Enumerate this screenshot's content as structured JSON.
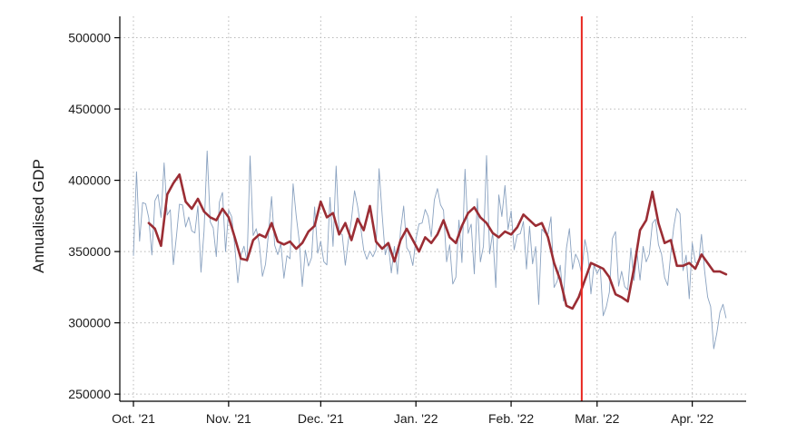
{
  "chart_data": {
    "type": "line",
    "title": "",
    "xlabel": "",
    "ylabel": "Annualised GDP",
    "ylim": [
      245000,
      515000
    ],
    "yticks": [
      250000,
      300000,
      350000,
      400000,
      450000,
      500000
    ],
    "ytick_labels": [
      "250000",
      "300000",
      "350000",
      "400000",
      "450000",
      "500000"
    ],
    "x_start": "2021-10-01",
    "x_end": "2022-04-15",
    "xticks": [
      "2021-10-01",
      "2021-11-01",
      "2021-12-01",
      "2022-01-01",
      "2022-02-01",
      "2022-03-01",
      "2022-04-01"
    ],
    "xtick_labels": [
      "Oct. '21",
      "Nov. '21",
      "Dec. '21",
      "Jan. '22",
      "Feb. '22",
      "Mar. '22",
      "Apr. '22"
    ],
    "grid": true,
    "vline": {
      "x": "2022-02-24",
      "color": "#e8261f"
    },
    "series": [
      {
        "role": "daily",
        "color": "#8aa2c0",
        "x": [
          "2021-10-01",
          "2021-10-31",
          "2021-11-30",
          "2021-12-31",
          "2022-01-31",
          "2022-02-28",
          "2022-03-31",
          "2022-04-12"
        ],
        "values": [
          375000,
          360000,
          356000,
          362000,
          364000,
          325000,
          350000,
          295000
        ]
      },
      {
        "role": "weekly-average",
        "color": "#9b2d34",
        "x": [
          "2021-10-06",
          "2021-10-08",
          "2021-10-10",
          "2021-10-12",
          "2021-10-14",
          "2021-10-16",
          "2021-10-18",
          "2021-10-20",
          "2021-10-22",
          "2021-10-24",
          "2021-10-26",
          "2021-10-28",
          "2021-10-30",
          "2021-11-01",
          "2021-11-03",
          "2021-11-05",
          "2021-11-07",
          "2021-11-09",
          "2021-11-11",
          "2021-11-13",
          "2021-11-15",
          "2021-11-17",
          "2021-11-19",
          "2021-11-21",
          "2021-11-23",
          "2021-11-25",
          "2021-11-27",
          "2021-11-29",
          "2021-12-01",
          "2021-12-03",
          "2021-12-05",
          "2021-12-07",
          "2021-12-09",
          "2021-12-11",
          "2021-12-13",
          "2021-12-15",
          "2021-12-17",
          "2021-12-19",
          "2021-12-21",
          "2021-12-23",
          "2021-12-25",
          "2021-12-27",
          "2021-12-29",
          "2021-12-31",
          "2022-01-02",
          "2022-01-04",
          "2022-01-06",
          "2022-01-08",
          "2022-01-10",
          "2022-01-12",
          "2022-01-14",
          "2022-01-16",
          "2022-01-18",
          "2022-01-20",
          "2022-01-22",
          "2022-01-24",
          "2022-01-26",
          "2022-01-28",
          "2022-01-30",
          "2022-02-01",
          "2022-02-03",
          "2022-02-05",
          "2022-02-07",
          "2022-02-09",
          "2022-02-11",
          "2022-02-13",
          "2022-02-15",
          "2022-02-17",
          "2022-02-19",
          "2022-02-21",
          "2022-02-23",
          "2022-02-25",
          "2022-02-27",
          "2022-03-01",
          "2022-03-03",
          "2022-03-05",
          "2022-03-07",
          "2022-03-09",
          "2022-03-11",
          "2022-03-13",
          "2022-03-15",
          "2022-03-17",
          "2022-03-19",
          "2022-03-21",
          "2022-03-23",
          "2022-03-25",
          "2022-03-27",
          "2022-03-29",
          "2022-03-31",
          "2022-04-02",
          "2022-04-04",
          "2022-04-06",
          "2022-04-08",
          "2022-04-10",
          "2022-04-12"
        ],
        "values": [
          370000,
          366000,
          354000,
          390000,
          398000,
          404000,
          385000,
          380000,
          387000,
          378000,
          374000,
          372000,
          380000,
          374000,
          360000,
          345000,
          344000,
          358000,
          362000,
          360000,
          370000,
          357000,
          355000,
          357000,
          352000,
          356000,
          364000,
          368000,
          385000,
          374000,
          377000,
          362000,
          370000,
          358000,
          373000,
          365000,
          382000,
          357000,
          352000,
          356000,
          343000,
          358000,
          366000,
          358000,
          350000,
          360000,
          356000,
          362000,
          372000,
          360000,
          356000,
          368000,
          377000,
          381000,
          374000,
          370000,
          363000,
          360000,
          364000,
          362000,
          367000,
          376000,
          372000,
          368000,
          370000,
          360000,
          342000,
          330000,
          312000,
          310000,
          318000,
          330000,
          342000,
          340000,
          338000,
          332000,
          320000,
          318000,
          315000,
          338000,
          365000,
          372000,
          392000,
          370000,
          356000,
          358000,
          340000,
          340000,
          342000,
          338000,
          348000,
          342000,
          336000,
          336000,
          334000
        ]
      }
    ]
  }
}
